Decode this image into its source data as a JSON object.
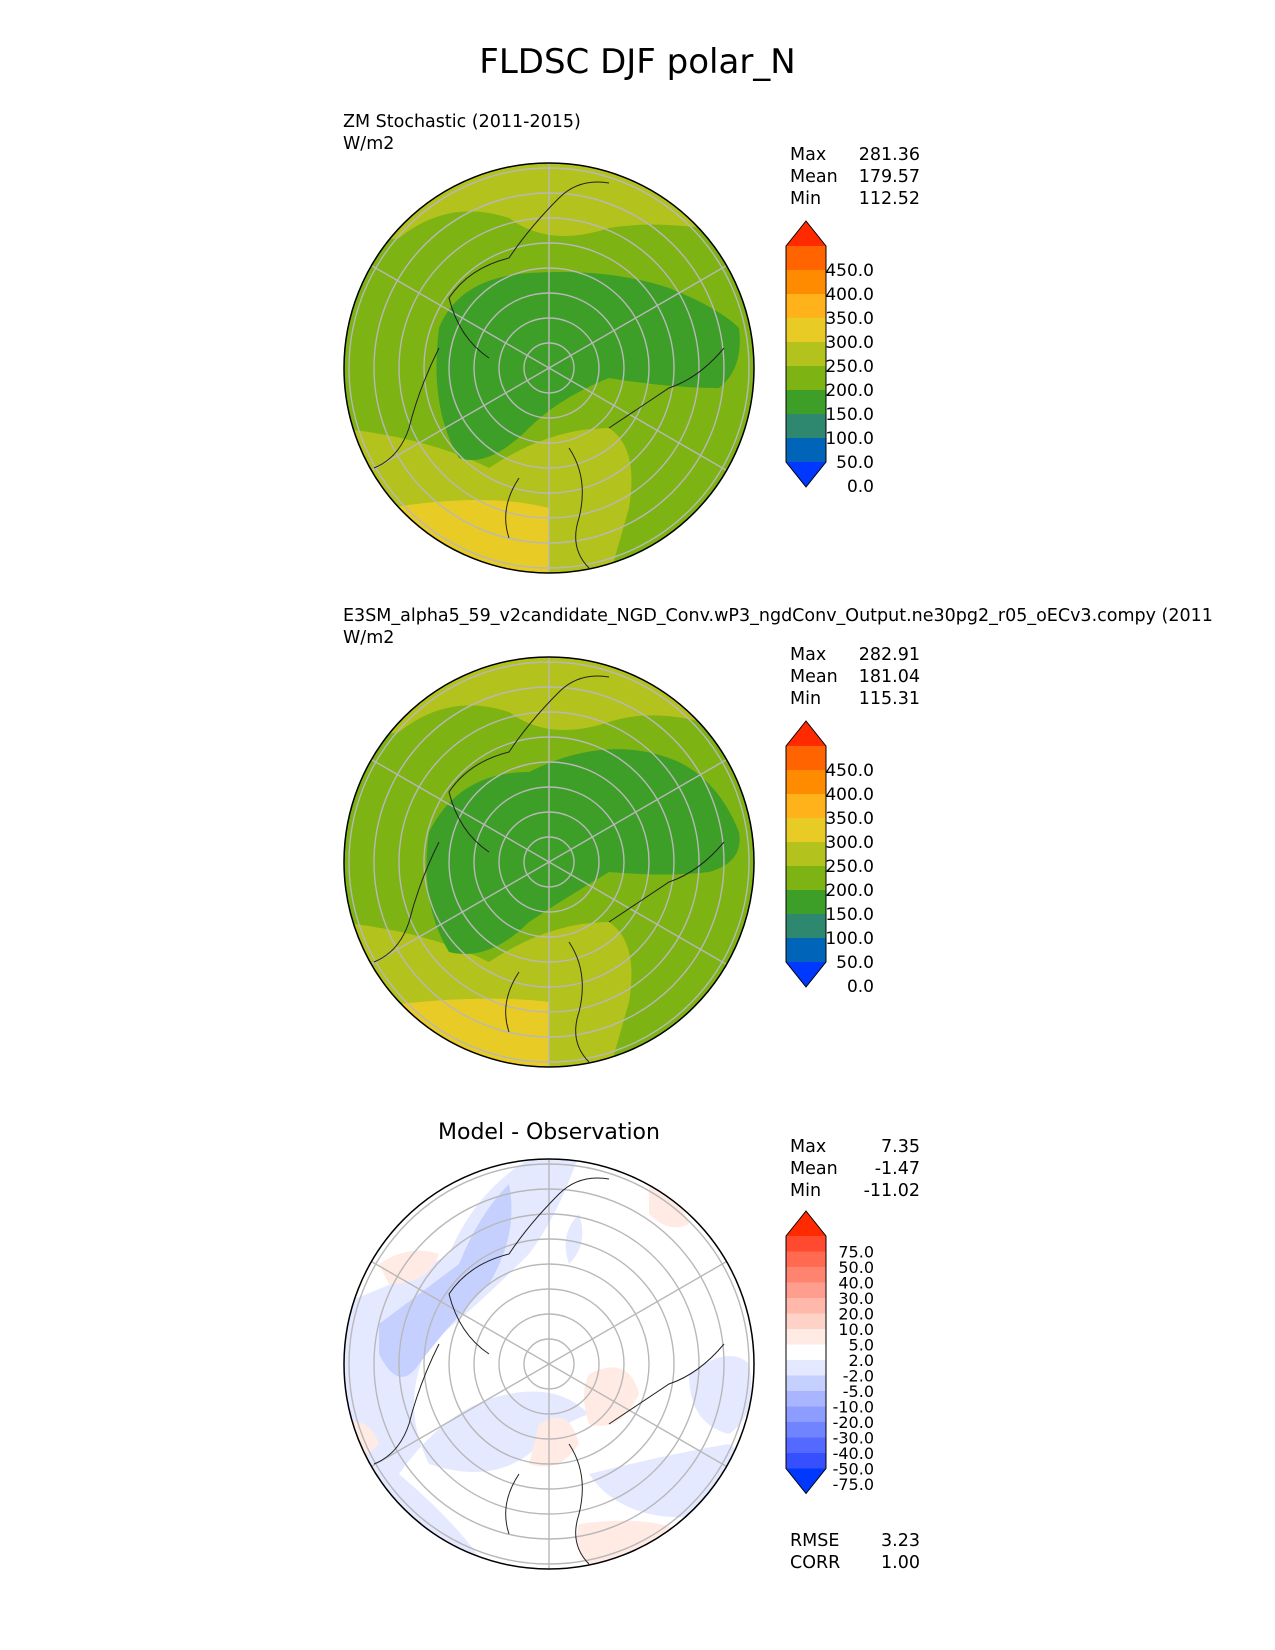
{
  "figure_title": "FLDSC DJF polar_N",
  "panels": [
    {
      "title_line1": "ZM Stochastic (2011-2015)",
      "units": "W/m2",
      "stats": {
        "max_label": "Max",
        "max": "281.36",
        "mean_label": "Mean",
        "mean": "179.57",
        "min_label": "Min",
        "min": "112.52"
      }
    },
    {
      "title_line1": "E3SM_alpha5_59_v2candidate_NGD_Conv.wP3_ngdConv_Output.ne30pg2_r05_oECv3.compy (2011",
      "units": "W/m2",
      "stats": {
        "max_label": "Max",
        "max": "282.91",
        "mean_label": "Mean",
        "mean": "181.04",
        "min_label": "Min",
        "min": "115.31"
      }
    },
    {
      "title_center": "Model - Observation",
      "stats": {
        "max_label": "Max",
        "max": "7.35",
        "mean_label": "Mean",
        "mean": "-1.47",
        "min_label": "Min",
        "min": "-11.02"
      },
      "rmse_label": "RMSE",
      "rmse": "3.23",
      "corr_label": "CORR",
      "corr": "1.00"
    }
  ],
  "colorbars": {
    "field": {
      "ticks": [
        "450.0",
        "400.0",
        "350.0",
        "300.0",
        "250.0",
        "200.0",
        "150.0",
        "100.0",
        "50.0",
        "0.0"
      ],
      "colors": [
        "#ff2a00",
        "#ff6400",
        "#ff8c00",
        "#ffb21a",
        "#e8cc25",
        "#b3c21c",
        "#7db312",
        "#3d9e28",
        "#2e876f",
        "#0065b8",
        "#0038ff"
      ]
    },
    "diff": {
      "ticks": [
        "75.0",
        "50.0",
        "40.0",
        "30.0",
        "20.0",
        "10.0",
        "5.0",
        "2.0",
        "-2.0",
        "-5.0",
        "-10.0",
        "-20.0",
        "-30.0",
        "-40.0",
        "-50.0",
        "-75.0"
      ],
      "colors": [
        "#ff2a00",
        "#ff4a30",
        "#ff6a50",
        "#ff8470",
        "#ff9e8e",
        "#ffb8aa",
        "#ffd2c8",
        "#ffeae4",
        "#ffffff",
        "#e4e9ff",
        "#c6d0ff",
        "#a9b6ff",
        "#8d9dff",
        "#7084ff",
        "#5469ff",
        "#3650ff",
        "#0038ff"
      ]
    }
  },
  "chart_data": [
    {
      "type": "heatmap",
      "title": "ZM Stochastic (2011-2015)",
      "units": "W/m2",
      "projection": "north polar stereographic",
      "variable": "FLDSC",
      "season": "DJF",
      "region": "polar_N",
      "max": 281.36,
      "mean": 179.57,
      "min": 112.52,
      "levels": [
        0,
        50,
        100,
        150,
        200,
        250,
        300,
        350,
        400,
        450
      ],
      "extend": "both"
    },
    {
      "type": "heatmap",
      "title": "E3SM_alpha5_59_v2candidate_NGD_Conv.wP3_ngdConv_Output.ne30pg2_r05_oECv3.compy (2011",
      "units": "W/m2",
      "projection": "north polar stereographic",
      "max": 282.91,
      "mean": 181.04,
      "min": 115.31,
      "levels": [
        0,
        50,
        100,
        150,
        200,
        250,
        300,
        350,
        400,
        450
      ],
      "extend": "both"
    },
    {
      "type": "heatmap",
      "title": "Model - Observation",
      "projection": "north polar stereographic",
      "max": 7.35,
      "mean": -1.47,
      "min": -11.02,
      "rmse": 3.23,
      "corr": 1.0,
      "levels": [
        -75,
        -50,
        -40,
        -30,
        -20,
        -10,
        -5,
        -2,
        2,
        5,
        10,
        20,
        30,
        40,
        50,
        75
      ],
      "extend": "both"
    }
  ]
}
